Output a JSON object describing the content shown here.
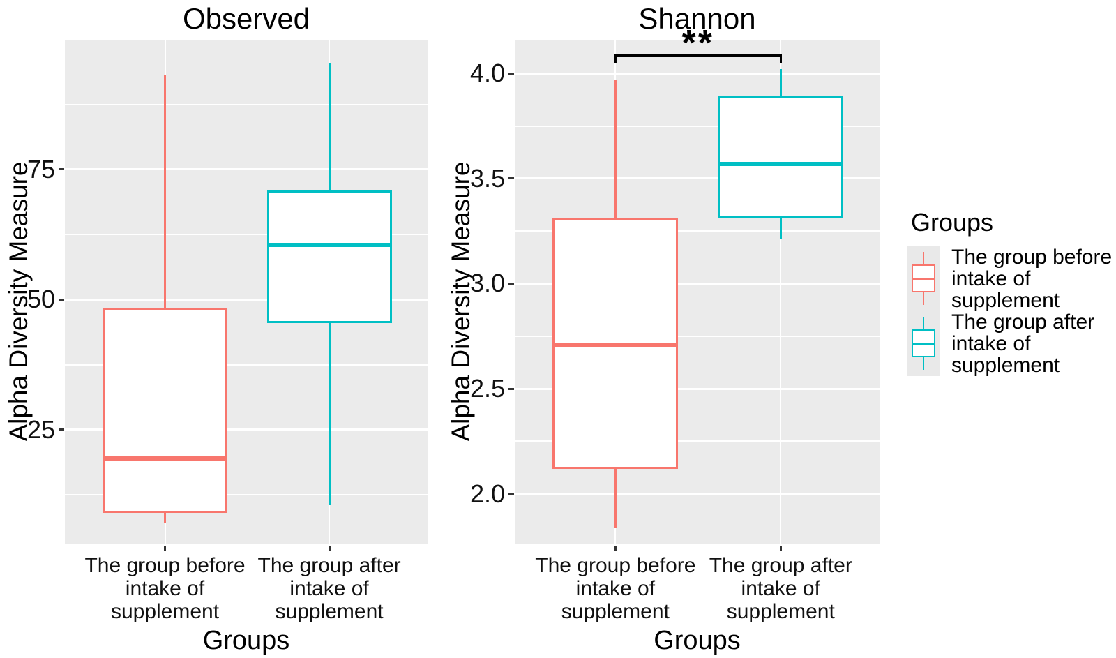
{
  "chart_data": [
    {
      "type": "boxplot",
      "title": "Observed",
      "xlabel": "Groups",
      "ylabel": "Alpha Diversity Measure",
      "categories": [
        "The group before intake of supplement",
        "The group after intake of supplement"
      ],
      "ylim": [
        3.0,
        99.9
      ],
      "yticks": [
        {
          "value": 25,
          "label": "25"
        },
        {
          "value": 50,
          "label": "50"
        },
        {
          "value": 75,
          "label": "75"
        }
      ],
      "grid": true,
      "series": [
        {
          "name": "The group before intake of supplement",
          "color": "#F8766D",
          "min": 7,
          "q1": 9,
          "median": 19.5,
          "q3": 48.5,
          "max": 93
        },
        {
          "name": "The group after intake of supplement",
          "color": "#00BFC4",
          "min": 10.5,
          "q1": 45.5,
          "median": 60.5,
          "q3": 71,
          "max": 95.5
        }
      ],
      "significance": null
    },
    {
      "type": "boxplot",
      "title": "Shannon",
      "xlabel": "Groups",
      "ylabel": "Alpha Diversity Measure",
      "categories": [
        "The group before intake of supplement",
        "The group after intake of supplement"
      ],
      "ylim": [
        1.76,
        4.16
      ],
      "yticks": [
        {
          "value": 2.0,
          "label": "2.0"
        },
        {
          "value": 2.5,
          "label": "2.5"
        },
        {
          "value": 3.0,
          "label": "3.0"
        },
        {
          "value": 3.5,
          "label": "3.5"
        },
        {
          "value": 4.0,
          "label": "4.0"
        }
      ],
      "grid": true,
      "series": [
        {
          "name": "The group before intake of supplement",
          "color": "#F8766D",
          "min": 1.84,
          "q1": 2.12,
          "median": 2.71,
          "q3": 3.31,
          "max": 3.97
        },
        {
          "name": "The group after intake of supplement",
          "color": "#00BFC4",
          "min": 3.21,
          "q1": 3.31,
          "median": 3.57,
          "q3": 3.89,
          "max": 4.02
        }
      ],
      "significance": {
        "label": "**",
        "y": 4.09
      }
    }
  ],
  "category_lines": [
    [
      "The group before",
      "intake of",
      "supplement"
    ],
    [
      "The group after",
      "intake of",
      "supplement"
    ]
  ],
  "legend": {
    "title": "Groups",
    "items": [
      {
        "label": "The group before intake of supplement",
        "lines": [
          "The group before",
          "intake of",
          "supplement"
        ],
        "color": "#F8766D"
      },
      {
        "label": "The group after intake of supplement",
        "lines": [
          "The group after",
          "intake of",
          "supplement"
        ],
        "color": "#00BFC4"
      }
    ]
  },
  "style": {
    "panel_background": "#EBEBEB",
    "gridline_color": "#FFFFFF",
    "text_color": "#000000",
    "significance_color": "#000000"
  }
}
